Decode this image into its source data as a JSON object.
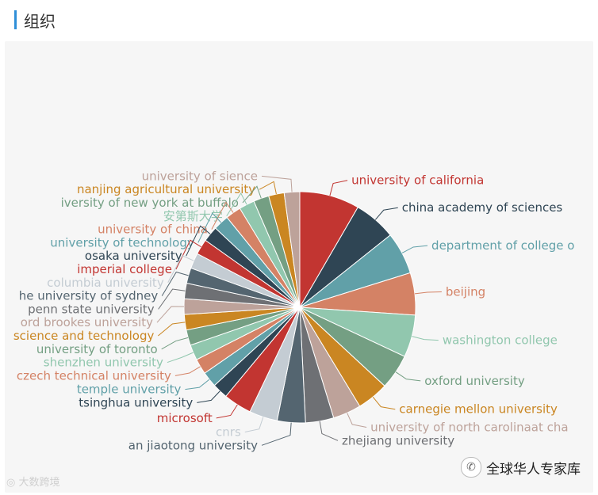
{
  "header": {
    "title": "组织"
  },
  "watermarks": {
    "left": "大数跨境",
    "right": "全球华人专家库"
  },
  "icons": {
    "wechat": "wechat-icon",
    "weibo": "weibo-icon"
  },
  "chart_data": {
    "type": "pie",
    "title": "",
    "slices": [
      {
        "label": "university of california",
        "value": 8.5,
        "color": "#c23531"
      },
      {
        "label": "china academy of sciences",
        "value": 6.0,
        "color": "#2f4554"
      },
      {
        "label": "department of college o",
        "value": 6.0,
        "color": "#61a0a8"
      },
      {
        "label": "beijing",
        "value": 6.0,
        "color": "#d48265"
      },
      {
        "label": "washington college",
        "value": 6.0,
        "color": "#91c7ae"
      },
      {
        "label": "oxford university",
        "value": 5.0,
        "color": "#749f83"
      },
      {
        "label": "carnegie mellon university",
        "value": 4.5,
        "color": "#ca8622"
      },
      {
        "label": "university of north carolinaat cha",
        "value": 4.0,
        "color": "#bda29a"
      },
      {
        "label": "zhejiang university",
        "value": 4.0,
        "color": "#6e7074"
      },
      {
        "label": "an jiaotong university",
        "value": 4.0,
        "color": "#546570"
      },
      {
        "label": "cnrs",
        "value": 4.0,
        "color": "#c4ccd3"
      },
      {
        "label": "microsoft",
        "value": 4.0,
        "color": "#c23531"
      },
      {
        "label": "tsinghua university",
        "value": 2.2,
        "color": "#2f4554"
      },
      {
        "label": "temple university",
        "value": 2.2,
        "color": "#61a0a8"
      },
      {
        "label": "czech technical university",
        "value": 2.2,
        "color": "#d48265"
      },
      {
        "label": "shenzhen university",
        "value": 2.2,
        "color": "#91c7ae"
      },
      {
        "label": "university of toronto",
        "value": 2.2,
        "color": "#749f83"
      },
      {
        "label": "science and technology",
        "value": 2.2,
        "color": "#ca8622"
      },
      {
        "label": "ord brookes university",
        "value": 2.2,
        "color": "#bda29a"
      },
      {
        "label": "penn state university",
        "value": 2.2,
        "color": "#6e7074"
      },
      {
        "label": "he university of sydney",
        "value": 2.2,
        "color": "#546570"
      },
      {
        "label": "columbia university",
        "value": 2.2,
        "color": "#c4ccd3"
      },
      {
        "label": "imperial college",
        "value": 2.2,
        "color": "#c23531"
      },
      {
        "label": "osaka university",
        "value": 2.2,
        "color": "#2f4554"
      },
      {
        "label": "university of technology",
        "value": 2.2,
        "color": "#61a0a8"
      },
      {
        "label": "university of china",
        "value": 2.2,
        "color": "#d48265"
      },
      {
        "label": "安第斯大学",
        "value": 2.2,
        "color": "#91c7ae"
      },
      {
        "label": "iversity of new york at buffalo",
        "value": 2.2,
        "color": "#749f83"
      },
      {
        "label": "nanjing agricultural university",
        "value": 2.2,
        "color": "#ca8622"
      },
      {
        "label": "university of sience",
        "value": 2.2,
        "color": "#bda29a"
      }
    ]
  }
}
